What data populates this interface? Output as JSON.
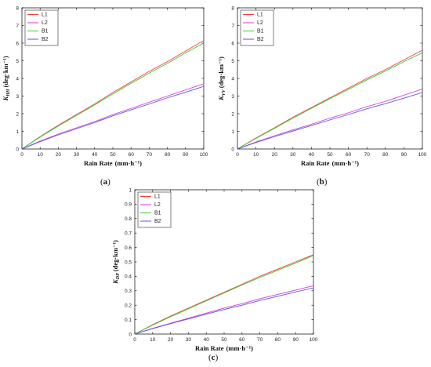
{
  "chart_data": [
    {
      "type": "line",
      "panel": "a",
      "label": "(a)",
      "xlabel": "Rain Rate",
      "xunit": "(mm·h⁻¹)",
      "ylabel_symbol": "K",
      "ylabel_sub": "HH",
      "ylabel_unit": "(deg·km⁻¹)",
      "xlim": [
        0,
        100
      ],
      "ylim": [
        0,
        8
      ],
      "xticks": [
        0,
        10,
        20,
        30,
        40,
        50,
        60,
        70,
        80,
        90,
        100
      ],
      "yticks": [
        0,
        1,
        2,
        3,
        4,
        5,
        6,
        7,
        8
      ],
      "grid": false,
      "legend": "top-left",
      "series": [
        {
          "name": "L1",
          "color": "#ff3b3b",
          "x": [
            0,
            10,
            20,
            30,
            40,
            50,
            60,
            70,
            80,
            90,
            100
          ],
          "y": [
            0,
            0.7,
            1.35,
            1.95,
            2.55,
            3.2,
            3.8,
            4.4,
            4.95,
            5.55,
            6.15
          ]
        },
        {
          "name": "L2",
          "color": "#dd33dd",
          "x": [
            0,
            10,
            20,
            30,
            40,
            50,
            60,
            70,
            80,
            90,
            100
          ],
          "y": [
            0,
            0.45,
            0.85,
            1.2,
            1.55,
            1.95,
            2.3,
            2.65,
            3.0,
            3.35,
            3.7
          ]
        },
        {
          "name": "B1",
          "color": "#33cc33",
          "x": [
            0,
            10,
            20,
            30,
            40,
            50,
            60,
            70,
            80,
            90,
            100
          ],
          "y": [
            0,
            0.68,
            1.3,
            1.9,
            2.5,
            3.12,
            3.72,
            4.3,
            4.85,
            5.45,
            6.0
          ]
        },
        {
          "name": "B2",
          "color": "#5555ee",
          "x": [
            0,
            10,
            20,
            30,
            40,
            50,
            60,
            70,
            80,
            90,
            100
          ],
          "y": [
            0,
            0.42,
            0.8,
            1.15,
            1.5,
            1.88,
            2.22,
            2.55,
            2.9,
            3.22,
            3.55
          ]
        }
      ]
    },
    {
      "type": "line",
      "panel": "b",
      "label": "(b)",
      "xlabel": "Rain Rate",
      "xunit": "(mm·h⁻¹)",
      "ylabel_symbol": "K",
      "ylabel_sub": "VV",
      "ylabel_unit": "(deg·km⁻¹)",
      "xlim": [
        0,
        100
      ],
      "ylim": [
        0,
        8
      ],
      "xticks": [
        0,
        10,
        20,
        30,
        40,
        50,
        60,
        70,
        80,
        90,
        100
      ],
      "yticks": [
        0,
        1,
        2,
        3,
        4,
        5,
        6,
        7,
        8
      ],
      "grid": false,
      "legend": "top-left",
      "series": [
        {
          "name": "L1",
          "color": "#ff3b3b",
          "x": [
            0,
            10,
            20,
            30,
            40,
            50,
            60,
            70,
            80,
            90,
            100
          ],
          "y": [
            0,
            0.62,
            1.2,
            1.8,
            2.35,
            2.9,
            3.45,
            4.0,
            4.5,
            5.05,
            5.6
          ]
        },
        {
          "name": "L2",
          "color": "#dd33dd",
          "x": [
            0,
            10,
            20,
            30,
            40,
            50,
            60,
            70,
            80,
            90,
            100
          ],
          "y": [
            0,
            0.4,
            0.75,
            1.08,
            1.4,
            1.75,
            2.05,
            2.4,
            2.7,
            3.05,
            3.4
          ]
        },
        {
          "name": "B1",
          "color": "#33cc33",
          "x": [
            0,
            10,
            20,
            30,
            40,
            50,
            60,
            70,
            80,
            90,
            100
          ],
          "y": [
            0,
            0.6,
            1.17,
            1.75,
            2.3,
            2.85,
            3.38,
            3.92,
            4.42,
            4.95,
            5.45
          ]
        },
        {
          "name": "B2",
          "color": "#5555ee",
          "x": [
            0,
            10,
            20,
            30,
            40,
            50,
            60,
            70,
            80,
            90,
            100
          ],
          "y": [
            0,
            0.37,
            0.7,
            1.02,
            1.33,
            1.65,
            1.95,
            2.28,
            2.57,
            2.88,
            3.2
          ]
        }
      ]
    },
    {
      "type": "line",
      "panel": "c",
      "label": "(c)",
      "xlabel": "Rain Rate",
      "xunit": "(mm·h⁻¹)",
      "ylabel_symbol": "K",
      "ylabel_sub": "DP",
      "ylabel_unit": "(deg·km⁻¹)",
      "xlim": [
        0,
        100
      ],
      "ylim": [
        0,
        1
      ],
      "xticks": [
        0,
        10,
        20,
        30,
        40,
        50,
        60,
        70,
        80,
        90,
        100
      ],
      "yticks": [
        0,
        0.1,
        0.2,
        0.3,
        0.4,
        0.5,
        0.6,
        0.7,
        0.8,
        0.9,
        1
      ],
      "grid": false,
      "legend": "top-left",
      "series": [
        {
          "name": "L1",
          "color": "#ff3b3b",
          "x": [
            0,
            10,
            20,
            30,
            40,
            50,
            60,
            70,
            80,
            90,
            100
          ],
          "y": [
            0,
            0.065,
            0.125,
            0.18,
            0.235,
            0.29,
            0.345,
            0.4,
            0.45,
            0.5,
            0.55
          ]
        },
        {
          "name": "L2",
          "color": "#dd33dd",
          "x": [
            0,
            10,
            20,
            30,
            40,
            50,
            60,
            70,
            80,
            90,
            100
          ],
          "y": [
            0,
            0.04,
            0.075,
            0.11,
            0.145,
            0.18,
            0.21,
            0.245,
            0.275,
            0.305,
            0.335
          ]
        },
        {
          "name": "B1",
          "color": "#33cc33",
          "x": [
            0,
            10,
            20,
            30,
            40,
            50,
            60,
            70,
            80,
            90,
            100
          ],
          "y": [
            0,
            0.062,
            0.12,
            0.175,
            0.23,
            0.285,
            0.34,
            0.392,
            0.442,
            0.492,
            0.545
          ]
        },
        {
          "name": "B2",
          "color": "#5555ee",
          "x": [
            0,
            10,
            20,
            30,
            40,
            50,
            60,
            70,
            80,
            90,
            100
          ],
          "y": [
            0,
            0.038,
            0.072,
            0.105,
            0.138,
            0.17,
            0.2,
            0.233,
            0.262,
            0.292,
            0.32
          ]
        }
      ]
    }
  ]
}
